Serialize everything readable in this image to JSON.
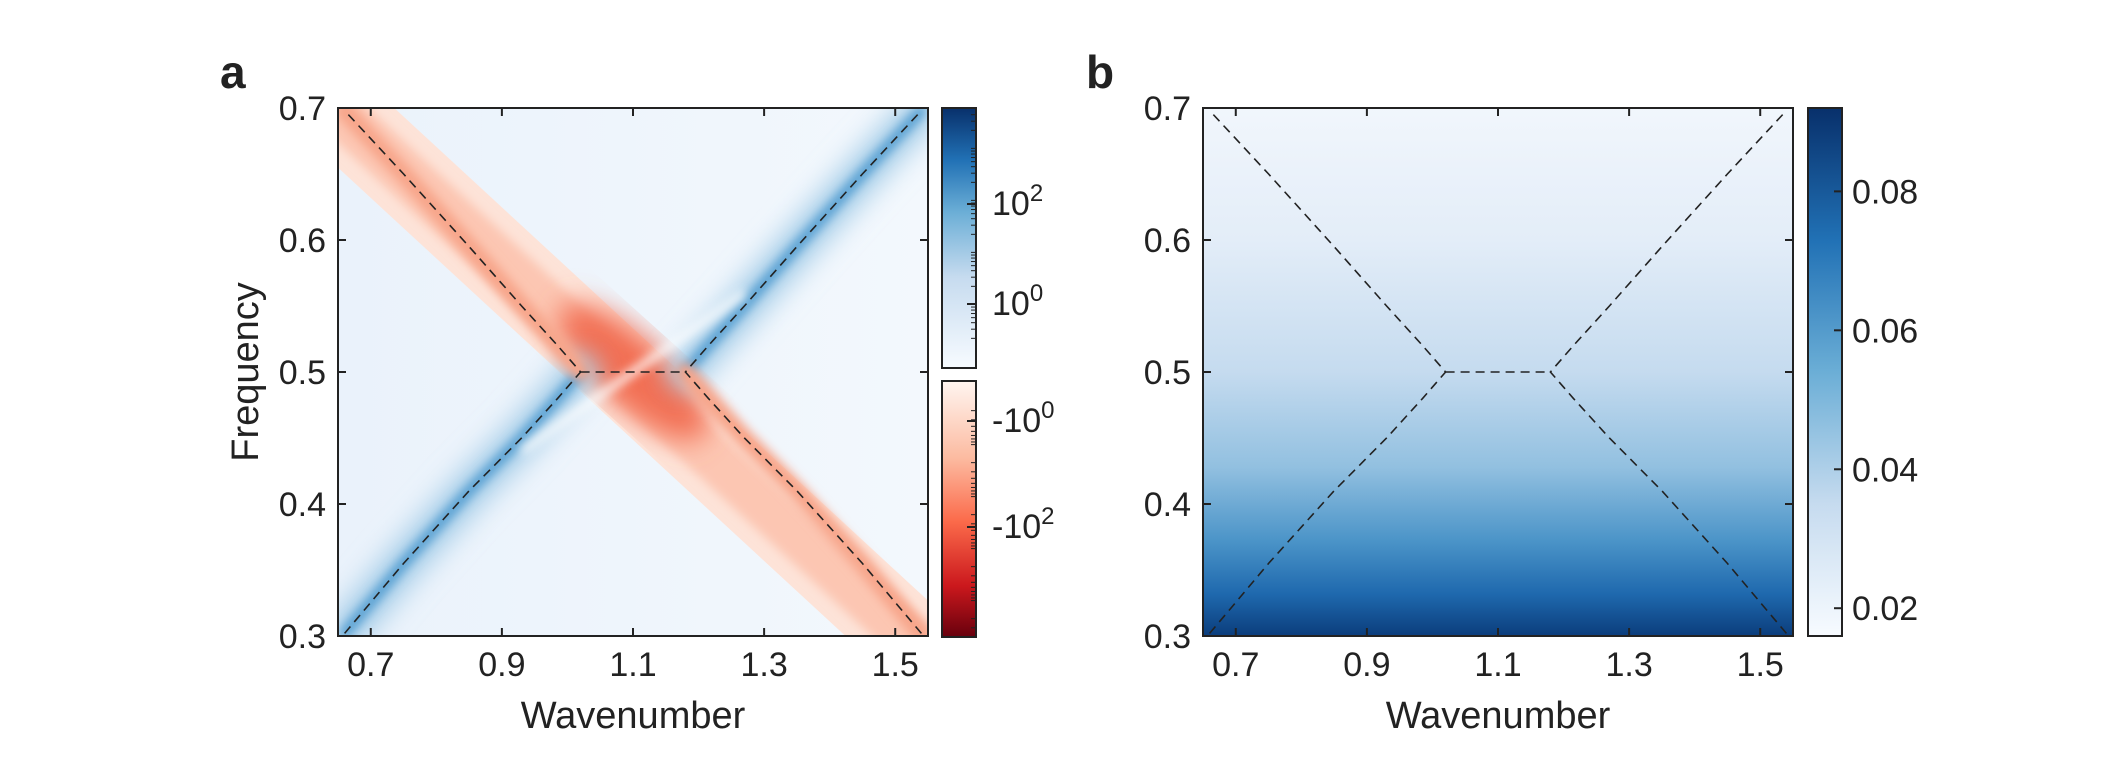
{
  "colors": {
    "blue_dark": "#08306b",
    "blue_mid": "#4292c6",
    "blue_light": "#f7fbff",
    "red_dark": "#67000d",
    "red_mid": "#fb6a4a",
    "red_light": "#fff5f0",
    "axis": "#222222",
    "dashed": "#222222"
  },
  "chart_data": [
    {
      "panel_label": "a",
      "type": "heatmap",
      "xlabel": "Wavenumber",
      "ylabel": "Frequency",
      "xlim": [
        0.65,
        1.55
      ],
      "ylim": [
        0.3,
        0.7
      ],
      "x_ticks": [
        0.7,
        0.9,
        1.1,
        1.3,
        1.5
      ],
      "x_tick_labels": [
        "0.7",
        "0.9",
        "1.1",
        "1.3",
        "1.5"
      ],
      "y_ticks": [
        0.3,
        0.4,
        0.5,
        0.6,
        0.7
      ],
      "y_tick_labels": [
        "0.3",
        "0.4",
        "0.5",
        "0.6",
        "0.7"
      ],
      "colorbar": {
        "scale": "log (split positive / negative)",
        "positive_ticks": [
          {
            "base": "10",
            "exp": "2"
          },
          {
            "base": "10",
            "exp": "0"
          }
        ],
        "negative_ticks": [
          {
            "base": "-10",
            "exp": "0"
          },
          {
            "base": "-10",
            "exp": "2"
          }
        ]
      },
      "dashed_curves": [
        {
          "name": "left-branch",
          "points": [
            [
              0.66,
              0.302
            ],
            [
              0.75,
              0.355
            ],
            [
              0.85,
              0.41
            ],
            [
              0.93,
              0.45
            ],
            [
              0.985,
              0.48
            ],
            [
              1.02,
              0.5
            ],
            [
              0.985,
              0.52
            ],
            [
              0.93,
              0.55
            ],
            [
              0.85,
              0.595
            ],
            [
              0.75,
              0.65
            ],
            [
              0.66,
              0.698
            ]
          ]
        },
        {
          "name": "right-branch",
          "points": [
            [
              1.54,
              0.302
            ],
            [
              1.45,
              0.355
            ],
            [
              1.35,
              0.41
            ],
            [
              1.27,
              0.45
            ],
            [
              1.215,
              0.48
            ],
            [
              1.18,
              0.5
            ],
            [
              1.215,
              0.52
            ],
            [
              1.27,
              0.55
            ],
            [
              1.35,
              0.595
            ],
            [
              1.45,
              0.65
            ],
            [
              1.54,
              0.698
            ]
          ]
        },
        {
          "name": "flat-segment",
          "points": [
            [
              1.02,
              0.5
            ],
            [
              1.18,
              0.5
            ]
          ]
        }
      ]
    },
    {
      "panel_label": "b",
      "type": "heatmap",
      "xlabel": "Wavenumber",
      "ylabel": "",
      "xlim": [
        0.65,
        1.55
      ],
      "ylim": [
        0.3,
        0.7
      ],
      "x_ticks": [
        0.7,
        0.9,
        1.1,
        1.3,
        1.5
      ],
      "x_tick_labels": [
        "0.7",
        "0.9",
        "1.1",
        "1.3",
        "1.5"
      ],
      "y_ticks": [
        0.3,
        0.4,
        0.5,
        0.6,
        0.7
      ],
      "y_tick_labels": [
        "0.3",
        "0.4",
        "0.5",
        "0.6",
        "0.7"
      ],
      "color_range": [
        0.016,
        0.092
      ],
      "colorbar_ticks": [
        0.02,
        0.04,
        0.06,
        0.08
      ],
      "colorbar_tick_labels": [
        "0.02",
        "0.04",
        "0.06",
        "0.08"
      ],
      "dashed_curves": [
        {
          "name": "left-branch",
          "points": [
            [
              0.66,
              0.302
            ],
            [
              0.75,
              0.355
            ],
            [
              0.85,
              0.41
            ],
            [
              0.93,
              0.45
            ],
            [
              0.985,
              0.48
            ],
            [
              1.02,
              0.5
            ],
            [
              0.985,
              0.52
            ],
            [
              0.93,
              0.55
            ],
            [
              0.85,
              0.595
            ],
            [
              0.75,
              0.65
            ],
            [
              0.66,
              0.698
            ]
          ]
        },
        {
          "name": "right-branch",
          "points": [
            [
              1.54,
              0.302
            ],
            [
              1.45,
              0.355
            ],
            [
              1.35,
              0.41
            ],
            [
              1.27,
              0.45
            ],
            [
              1.215,
              0.48
            ],
            [
              1.18,
              0.5
            ],
            [
              1.215,
              0.52
            ],
            [
              1.27,
              0.55
            ],
            [
              1.35,
              0.595
            ],
            [
              1.45,
              0.65
            ],
            [
              1.54,
              0.698
            ]
          ]
        },
        {
          "name": "flat-segment",
          "points": [
            [
              1.02,
              0.5
            ],
            [
              1.18,
              0.5
            ]
          ]
        }
      ]
    }
  ]
}
